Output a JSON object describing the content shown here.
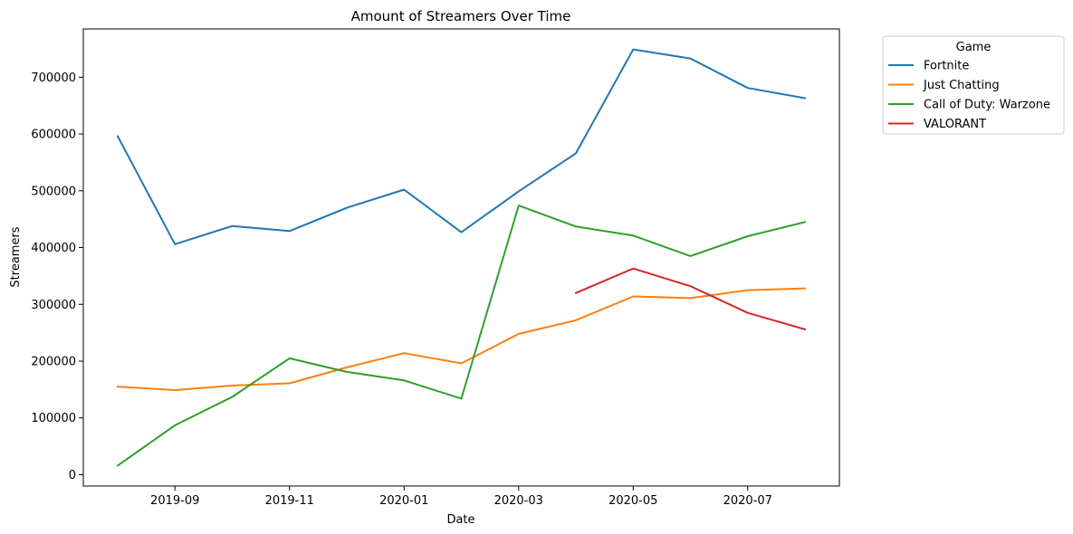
{
  "chart_data": {
    "type": "line",
    "title": "Amount of Streamers Over Time",
    "xlabel": "Date",
    "ylabel": "Streamers",
    "x": [
      "2019-08",
      "2019-09",
      "2019-10",
      "2019-11",
      "2019-12",
      "2020-01",
      "2020-02",
      "2020-03",
      "2020-04",
      "2020-05",
      "2020-06",
      "2020-07",
      "2020-08"
    ],
    "x_ticks": [
      "2019-09",
      "2019-11",
      "2020-01",
      "2020-03",
      "2020-05",
      "2020-07"
    ],
    "y_ticks": [
      0,
      100000,
      200000,
      300000,
      400000,
      500000,
      600000,
      700000
    ],
    "ylim": [
      -20000,
      785000
    ],
    "grid": false,
    "legend": {
      "title": "Game",
      "placement": "outside-top-right"
    },
    "series": [
      {
        "name": "Fortnite",
        "color": "#1f77b4",
        "values": [
          596000,
          406000,
          438000,
          429000,
          470000,
          502000,
          427000,
          499000,
          566000,
          749000,
          733000,
          681000,
          663000
        ]
      },
      {
        "name": "Just Chatting",
        "color": "#ff7f0e",
        "values": [
          155000,
          149000,
          157000,
          161000,
          189000,
          214000,
          196000,
          248000,
          272000,
          314000,
          311000,
          325000,
          328000
        ]
      },
      {
        "name": "Call of Duty: Warzone",
        "color": "#2ca02c",
        "values": [
          16000,
          87000,
          137000,
          205000,
          181000,
          166000,
          134000,
          474000,
          437000,
          421000,
          385000,
          420000,
          445000
        ]
      },
      {
        "name": "VALORANT",
        "color": "#d62728",
        "values": [
          null,
          null,
          null,
          null,
          null,
          null,
          null,
          null,
          320000,
          363000,
          332000,
          285000,
          256000
        ]
      }
    ]
  }
}
